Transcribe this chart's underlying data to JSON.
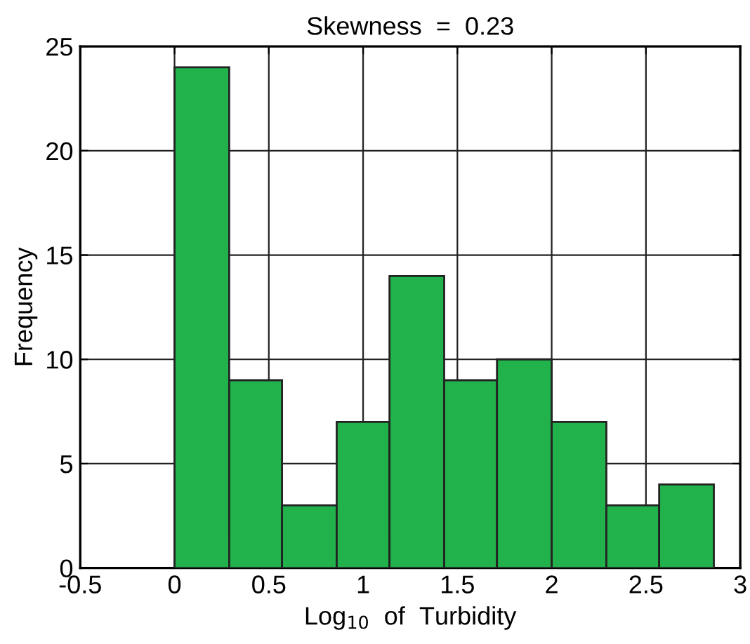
{
  "chart_data": {
    "type": "histogram",
    "title": "Skewness  =  0.23",
    "xlabel": "Log$_{10}$  of  Turbidity",
    "ylabel": "Frequency",
    "bins": [
      0,
      0.29,
      0.57,
      0.86,
      1.14,
      1.43,
      1.71,
      2.0,
      2.29,
      2.57,
      2.86
    ],
    "values": [
      24,
      9,
      3,
      7,
      14,
      9,
      10,
      7,
      3,
      4
    ],
    "color": "#22b24c",
    "xlim": [
      -0.5,
      3
    ],
    "xticks": [
      -0.5,
      0,
      0.5,
      1,
      1.5,
      2,
      2.5,
      3
    ],
    "ylim": [
      0,
      25
    ],
    "yticks": [
      0,
      5,
      10,
      15,
      20,
      25
    ],
    "grid": true
  }
}
